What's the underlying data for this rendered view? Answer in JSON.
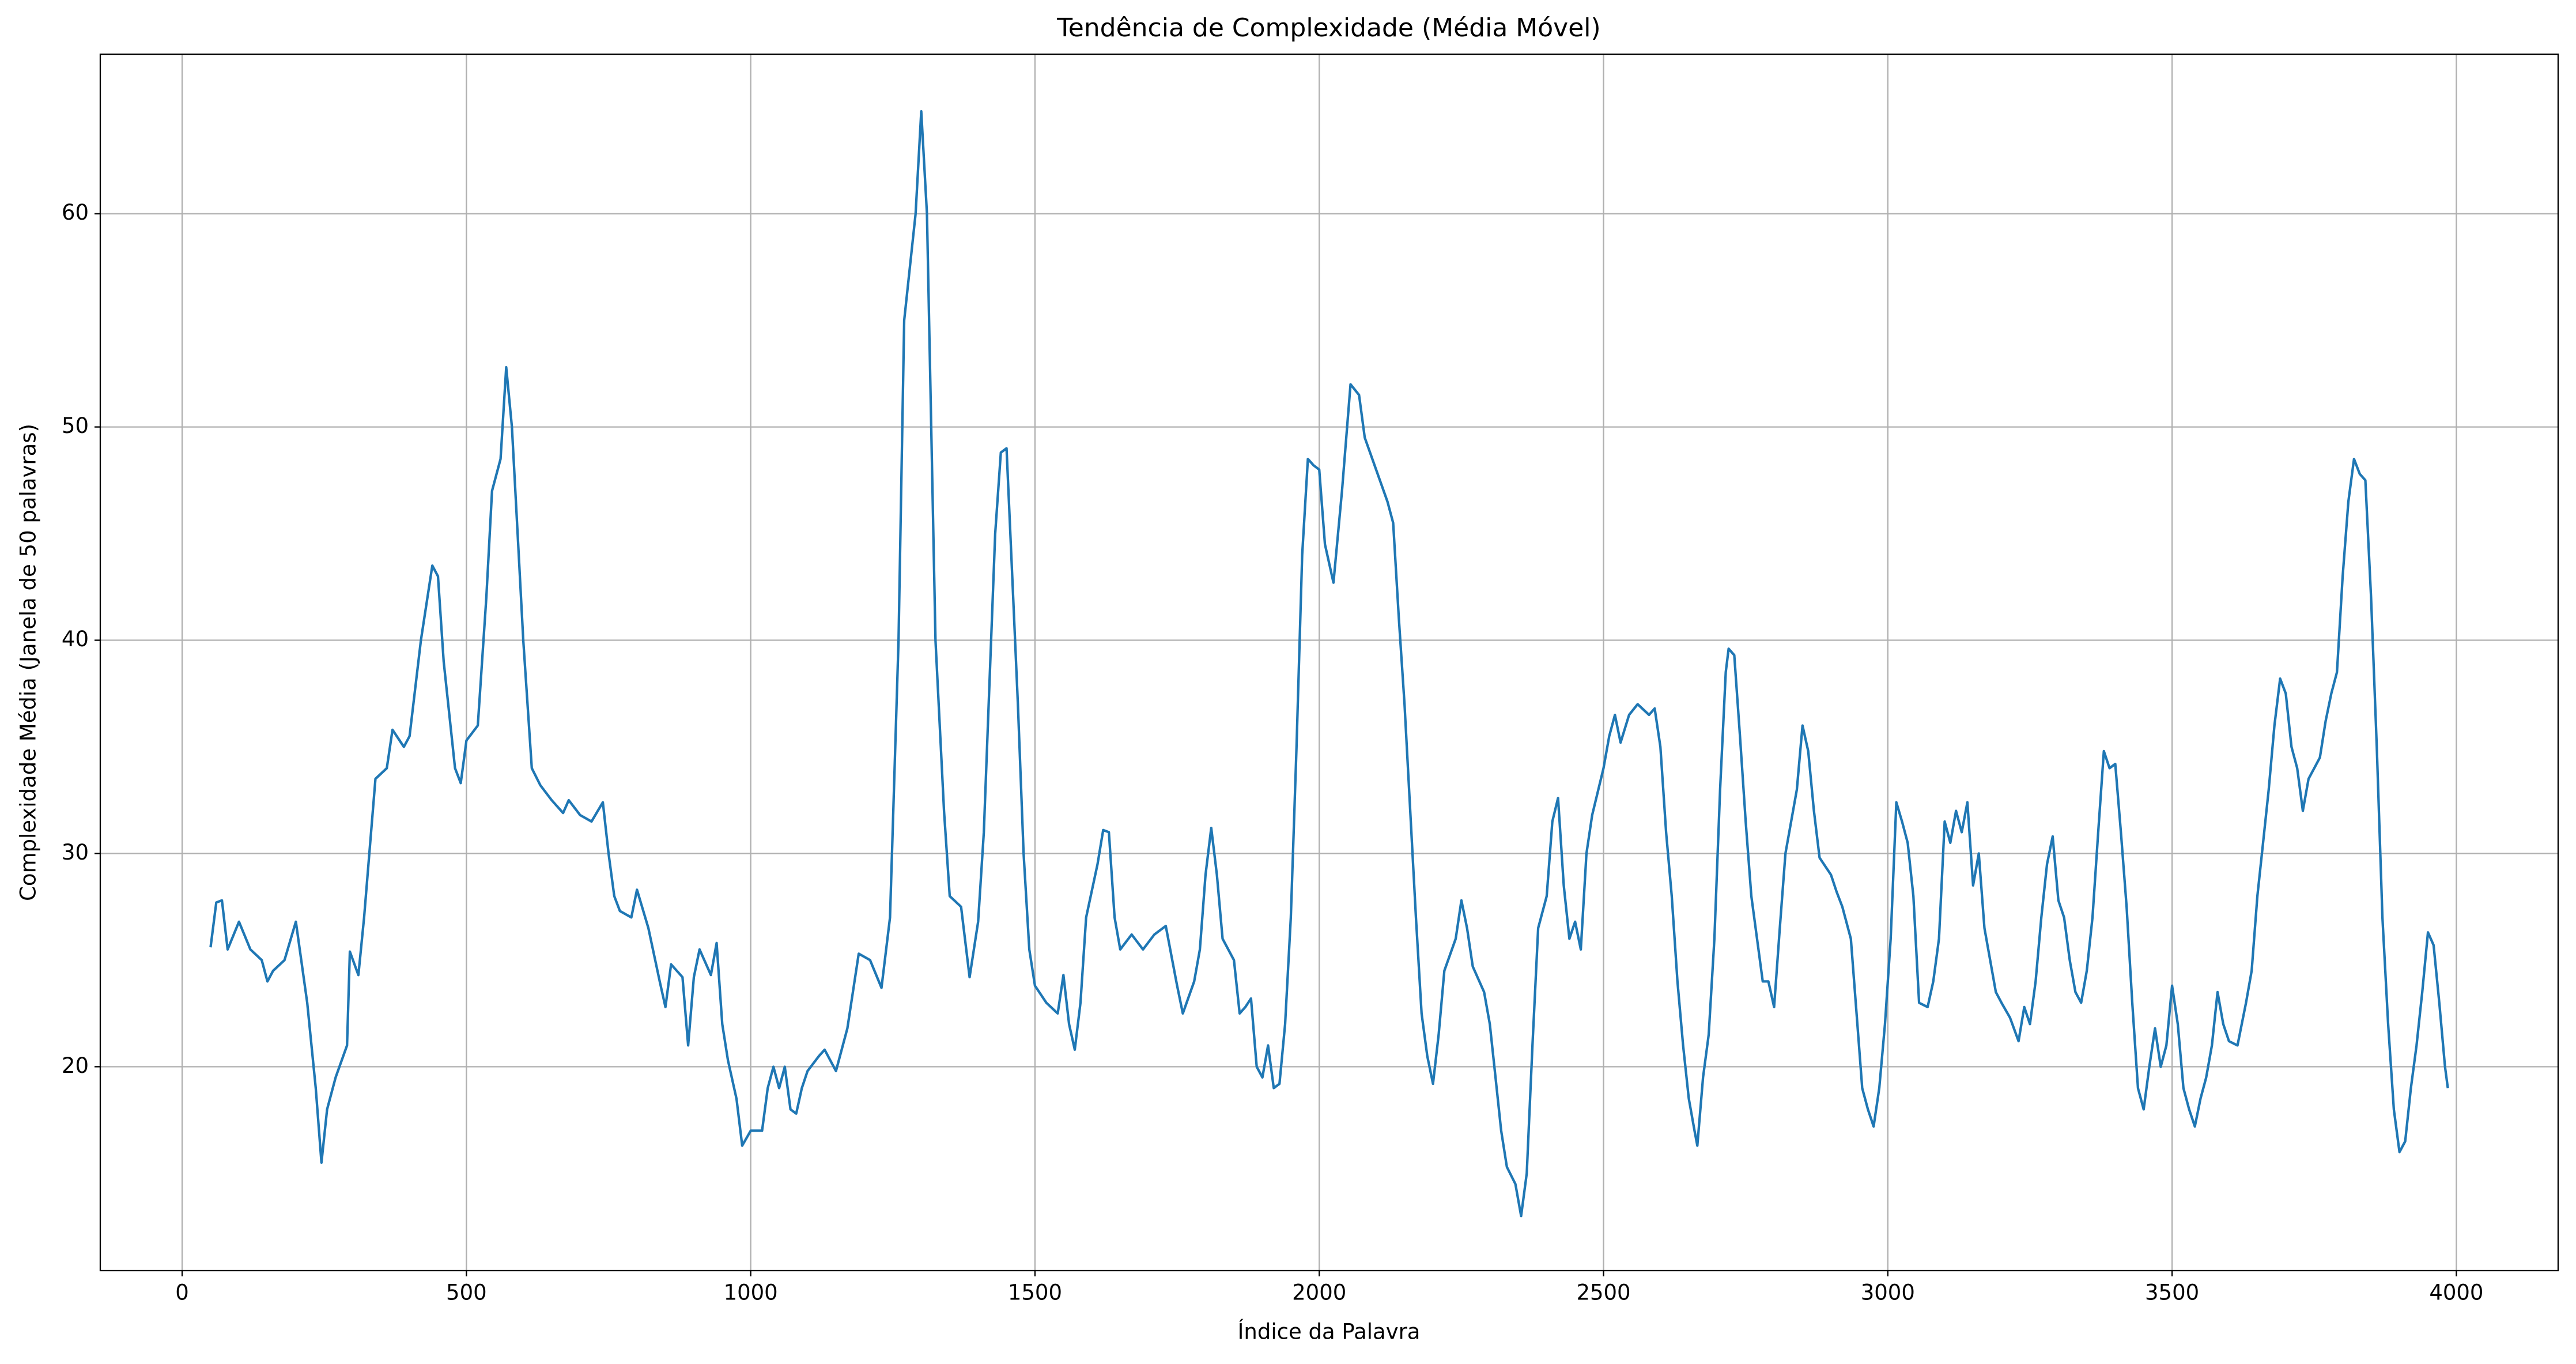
{
  "chart_data": {
    "type": "line",
    "title": "Tendência de Complexidade (Média Móvel)",
    "x_label": "Índice da Palavra",
    "y_label": "Complexidade Média (Janela de 50 palavras)",
    "color": "#1f77b4",
    "grid": true,
    "xlim": [
      -144,
      4179
    ],
    "ylim": [
      10.44,
      67.48
    ],
    "xticks": [
      0,
      500,
      1000,
      1500,
      2000,
      2500,
      3000,
      3500,
      4000
    ],
    "yticks": [
      20,
      30,
      40,
      50,
      60
    ],
    "x": [
      50,
      60,
      70,
      80,
      100,
      120,
      140,
      150,
      160,
      180,
      200,
      220,
      235,
      245,
      255,
      270,
      290,
      295,
      310,
      320,
      340,
      360,
      370,
      390,
      400,
      420,
      440,
      450,
      460,
      480,
      490,
      500,
      520,
      535,
      545,
      560,
      570,
      580,
      590,
      600,
      615,
      630,
      650,
      670,
      680,
      700,
      720,
      740,
      750,
      760,
      770,
      790,
      800,
      820,
      840,
      850,
      860,
      880,
      890,
      900,
      910,
      930,
      940,
      950,
      960,
      975,
      985,
      1000,
      1020,
      1030,
      1040,
      1050,
      1060,
      1070,
      1080,
      1090,
      1100,
      1120,
      1130,
      1150,
      1170,
      1190,
      1210,
      1230,
      1245,
      1260,
      1270,
      1290,
      1300,
      1310,
      1325,
      1340,
      1350,
      1370,
      1385,
      1400,
      1410,
      1420,
      1430,
      1440,
      1450,
      1460,
      1470,
      1480,
      1490,
      1500,
      1520,
      1540,
      1550,
      1560,
      1570,
      1580,
      1590,
      1610,
      1620,
      1630,
      1640,
      1650,
      1670,
      1690,
      1710,
      1730,
      1750,
      1760,
      1780,
      1790,
      1800,
      1810,
      1820,
      1830,
      1850,
      1860,
      1870,
      1880,
      1890,
      1900,
      1910,
      1920,
      1930,
      1940,
      1950,
      1960,
      1970,
      1980,
      1990,
      2000,
      2010,
      2025,
      2040,
      2055,
      2070,
      2080,
      2100,
      2120,
      2130,
      2140,
      2150,
      2160,
      2170,
      2180,
      2190,
      2200,
      2210,
      2220,
      2240,
      2250,
      2260,
      2270,
      2290,
      2300,
      2310,
      2320,
      2330,
      2345,
      2355,
      2365,
      2375,
      2385,
      2400,
      2410,
      2420,
      2430,
      2440,
      2450,
      2460,
      2470,
      2480,
      2500,
      2510,
      2520,
      2530,
      2545,
      2560,
      2580,
      2590,
      2600,
      2610,
      2620,
      2630,
      2640,
      2650,
      2660,
      2665,
      2675,
      2685,
      2695,
      2705,
      2715,
      2720,
      2730,
      2740,
      2750,
      2760,
      2770,
      2780,
      2790,
      2800,
      2810,
      2820,
      2840,
      2850,
      2860,
      2870,
      2880,
      2900,
      2910,
      2920,
      2935,
      2945,
      2955,
      2965,
      2975,
      2985,
      2995,
      3005,
      3015,
      3025,
      3035,
      3045,
      3055,
      3070,
      3080,
      3090,
      3100,
      3110,
      3120,
      3130,
      3140,
      3150,
      3160,
      3170,
      3180,
      3190,
      3200,
      3215,
      3230,
      3240,
      3250,
      3260,
      3270,
      3280,
      3290,
      3300,
      3310,
      3320,
      3330,
      3340,
      3350,
      3360,
      3370,
      3380,
      3390,
      3400,
      3410,
      3420,
      3430,
      3440,
      3450,
      3460,
      3470,
      3480,
      3490,
      3500,
      3510,
      3520,
      3530,
      3540,
      3550,
      3560,
      3570,
      3580,
      3590,
      3600,
      3615,
      3630,
      3640,
      3650,
      3660,
      3670,
      3680,
      3690,
      3700,
      3710,
      3720,
      3730,
      3740,
      3750,
      3760,
      3770,
      3780,
      3790,
      3800,
      3810,
      3820,
      3830,
      3840,
      3850,
      3860,
      3870,
      3880,
      3890,
      3900,
      3910,
      3920,
      3930,
      3940,
      3950,
      3960,
      3970,
      3980,
      3985
    ],
    "values": [
      25.6,
      27.7,
      27.8,
      25.5,
      26.8,
      25.5,
      25,
      24,
      24.5,
      25,
      26.8,
      23,
      19,
      15.5,
      18,
      19.5,
      21,
      25.4,
      24.3,
      27,
      33.5,
      34,
      35.8,
      35,
      35.5,
      40,
      43.5,
      43,
      39,
      34,
      33.3,
      35.3,
      36,
      42,
      47,
      48.5,
      52.8,
      50,
      45,
      40,
      34,
      33.2,
      32.5,
      31.9,
      32.5,
      31.8,
      31.5,
      32.4,
      30,
      28,
      27.3,
      27,
      28.3,
      26.5,
      24,
      22.8,
      24.8,
      24.2,
      21,
      24.2,
      25.5,
      24.3,
      25.8,
      22,
      20.3,
      18.5,
      16.3,
      17,
      17,
      19,
      20,
      19,
      20,
      18,
      17.8,
      19,
      19.8,
      20.5,
      20.8,
      19.8,
      21.8,
      25.3,
      25,
      23.7,
      27,
      40,
      55,
      60,
      64.8,
      60,
      40,
      32,
      28,
      27.5,
      24.2,
      26.8,
      31,
      38,
      45,
      48.8,
      49,
      43,
      37,
      30,
      25.5,
      23.8,
      23,
      22.5,
      24.3,
      22,
      20.8,
      23,
      27,
      29.5,
      31.1,
      31,
      27,
      25.5,
      26.2,
      25.5,
      26.2,
      26.6,
      23.8,
      22.5,
      24,
      25.5,
      29,
      31.2,
      29,
      26,
      25,
      22.5,
      22.8,
      23.2,
      20,
      19.5,
      21,
      19,
      19.2,
      22,
      27,
      35,
      44,
      48.5,
      48.2,
      48,
      44.5,
      42.7,
      47,
      52,
      51.5,
      49.5,
      48,
      46.5,
      45.5,
      41,
      37,
      32,
      27,
      22.5,
      20.5,
      19.2,
      21.5,
      24.5,
      26,
      27.8,
      26.5,
      24.7,
      23.5,
      22,
      19.5,
      17,
      15.3,
      14.5,
      13,
      15,
      21,
      26.5,
      28,
      31.5,
      32.6,
      28.5,
      26,
      26.8,
      25.5,
      30,
      31.8,
      34,
      35.5,
      36.5,
      35.2,
      36.5,
      37,
      36.5,
      36.8,
      35,
      31,
      28,
      24,
      21,
      18.5,
      17,
      16.3,
      19.5,
      21.5,
      26,
      33,
      38.5,
      39.6,
      39.3,
      35.5,
      31.5,
      28,
      26,
      24,
      24,
      22.8,
      26.5,
      30,
      33,
      36,
      34.8,
      32,
      29.8,
      29,
      28.2,
      27.5,
      26,
      22.5,
      19,
      18,
      17.2,
      19,
      22,
      26,
      32.4,
      31.5,
      30.5,
      28,
      23,
      22.8,
      24,
      26,
      31.5,
      30.5,
      32,
      31,
      32.4,
      28.5,
      30,
      26.5,
      25,
      23.5,
      23,
      22.3,
      21.2,
      22.8,
      22,
      24,
      27,
      29.5,
      30.8,
      27.8,
      27,
      25,
      23.5,
      23,
      24.5,
      27,
      31,
      34.8,
      34,
      34.2,
      31,
      27.5,
      23,
      19,
      18,
      20,
      21.8,
      20,
      21,
      23.8,
      22,
      19,
      18,
      17.2,
      18.5,
      19.5,
      21,
      23.5,
      22,
      21.2,
      21,
      23,
      24.5,
      28,
      30.5,
      33,
      36,
      38.2,
      37.5,
      35,
      34,
      32,
      33.5,
      34,
      34.5,
      36.2,
      37.5,
      38.5,
      43,
      46.5,
      48.5,
      47.8,
      47.5,
      42,
      35,
      27,
      22,
      18,
      16,
      16.5,
      19,
      21,
      23.5,
      26.3,
      25.7,
      23,
      20,
      19
    ]
  }
}
